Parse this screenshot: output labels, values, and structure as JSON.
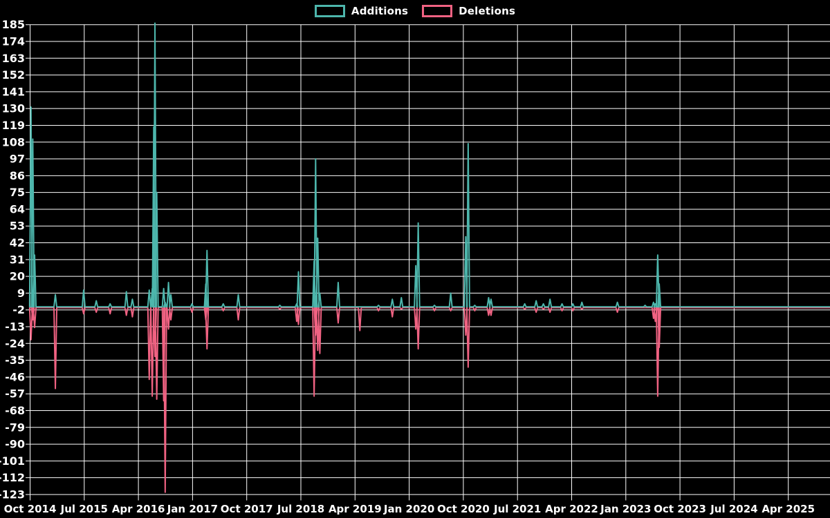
{
  "chart_data": {
    "type": "line",
    "title": "",
    "background_color": "#000000",
    "grid_color": "#ffffff",
    "text_color": "#ffffff",
    "legend_position": "top-center",
    "grid": true,
    "legend_items": [
      {
        "label": "Additions",
        "color": "#4db6ac"
      },
      {
        "label": "Deletions",
        "color": "#f06282"
      }
    ],
    "x_axis": {
      "tick_labels": [
        "Oct 2014",
        "Jul 2015",
        "Apr 2016",
        "Jan 2017",
        "Oct 2017",
        "Jul 2018",
        "Apr 2019",
        "Jan 2020",
        "Oct 2020",
        "Jul 2021",
        "Apr 2022",
        "Jan 2023",
        "Oct 2023",
        "Jul 2024",
        "Apr 2025"
      ],
      "tick_interval_months": 9,
      "start_month": "Oct 2014",
      "axis_extends_to_months": 132.8
    },
    "y_axis": {
      "min": -123,
      "max": 185,
      "step": 11,
      "ticks": [
        185,
        174,
        163,
        152,
        141,
        130,
        119,
        108,
        97,
        86,
        75,
        64,
        53,
        42,
        31,
        20,
        9,
        -2,
        -13,
        -24,
        -35,
        -46,
        -57,
        -68,
        -79,
        -90,
        -101,
        -112,
        -123
      ]
    },
    "series": [
      {
        "name": "Additions",
        "color": "#4db6ac",
        "baseline": 0,
        "points": [
          [
            0.15,
            131
          ],
          [
            0.45,
            110
          ],
          [
            0.75,
            34
          ],
          [
            4.2,
            8
          ],
          [
            8.9,
            11
          ],
          [
            11.0,
            4
          ],
          [
            13.3,
            2
          ],
          [
            16.0,
            10
          ],
          [
            17.0,
            5
          ],
          [
            19.8,
            11
          ],
          [
            20.3,
            12
          ],
          [
            20.55,
            118
          ],
          [
            20.75,
            186
          ],
          [
            21.05,
            75
          ],
          [
            22.2,
            12
          ],
          [
            22.45,
            3
          ],
          [
            23.0,
            16
          ],
          [
            23.4,
            8
          ],
          [
            26.9,
            2
          ],
          [
            29.2,
            15
          ],
          [
            29.4,
            37
          ],
          [
            32.1,
            2
          ],
          [
            34.6,
            8
          ],
          [
            41.5,
            1
          ],
          [
            44.3,
            2
          ],
          [
            44.6,
            23
          ],
          [
            47.2,
            30
          ],
          [
            47.45,
            97
          ],
          [
            47.8,
            45
          ],
          [
            48.15,
            9
          ],
          [
            51.2,
            16
          ],
          [
            54.8,
            0
          ],
          [
            57.9,
            1
          ],
          [
            60.2,
            5
          ],
          [
            61.7,
            6
          ],
          [
            64.1,
            27
          ],
          [
            64.5,
            55
          ],
          [
            67.2,
            1
          ],
          [
            69.9,
            9
          ],
          [
            72.4,
            46
          ],
          [
            72.8,
            107
          ],
          [
            73.9,
            1
          ],
          [
            76.2,
            6
          ],
          [
            76.6,
            5
          ],
          [
            82.2,
            2
          ],
          [
            84.1,
            4
          ],
          [
            85.3,
            2
          ],
          [
            86.4,
            5
          ],
          [
            88.4,
            2
          ],
          [
            90.2,
            2
          ],
          [
            91.7,
            3
          ],
          [
            97.6,
            3
          ],
          [
            102.2,
            1
          ],
          [
            103.6,
            3
          ],
          [
            103.9,
            2
          ],
          [
            104.3,
            34
          ],
          [
            104.55,
            15
          ]
        ]
      },
      {
        "name": "Deletions",
        "color": "#f06282",
        "baseline": 0,
        "points": [
          [
            0.15,
            -21
          ],
          [
            0.45,
            -8
          ],
          [
            0.75,
            -13
          ],
          [
            4.2,
            -53
          ],
          [
            8.9,
            -4
          ],
          [
            11.0,
            -3
          ],
          [
            13.3,
            -4
          ],
          [
            16.0,
            -5
          ],
          [
            17.0,
            -6
          ],
          [
            19.8,
            -47
          ],
          [
            20.3,
            -58
          ],
          [
            20.75,
            -32
          ],
          [
            21.05,
            -60
          ],
          [
            22.2,
            -61
          ],
          [
            22.45,
            -121
          ],
          [
            23.0,
            -14
          ],
          [
            23.4,
            -8
          ],
          [
            26.9,
            -3
          ],
          [
            29.2,
            -8
          ],
          [
            29.4,
            -27
          ],
          [
            32.1,
            -2
          ],
          [
            34.6,
            -8
          ],
          [
            41.5,
            -1
          ],
          [
            44.3,
            -9
          ],
          [
            44.6,
            -11
          ],
          [
            47.2,
            -58
          ],
          [
            47.45,
            -18
          ],
          [
            47.8,
            -28
          ],
          [
            48.15,
            -30
          ],
          [
            51.2,
            -10
          ],
          [
            54.8,
            -15
          ],
          [
            57.9,
            -2
          ],
          [
            60.2,
            -6
          ],
          [
            61.7,
            -1
          ],
          [
            64.1,
            -14
          ],
          [
            64.5,
            -27
          ],
          [
            67.2,
            -2
          ],
          [
            69.9,
            -2
          ],
          [
            72.4,
            -18
          ],
          [
            72.8,
            -39
          ],
          [
            73.9,
            -2
          ],
          [
            76.2,
            -5
          ],
          [
            76.6,
            -5
          ],
          [
            82.2,
            -1
          ],
          [
            84.1,
            -3
          ],
          [
            85.3,
            -1
          ],
          [
            86.4,
            -3
          ],
          [
            88.4,
            -2
          ],
          [
            90.2,
            -2
          ],
          [
            91.7,
            -1
          ],
          [
            97.6,
            -3
          ],
          [
            102.2,
            0
          ],
          [
            103.6,
            -7
          ],
          [
            103.9,
            -9
          ],
          [
            104.3,
            -58
          ],
          [
            104.55,
            -26
          ]
        ]
      }
    ]
  }
}
